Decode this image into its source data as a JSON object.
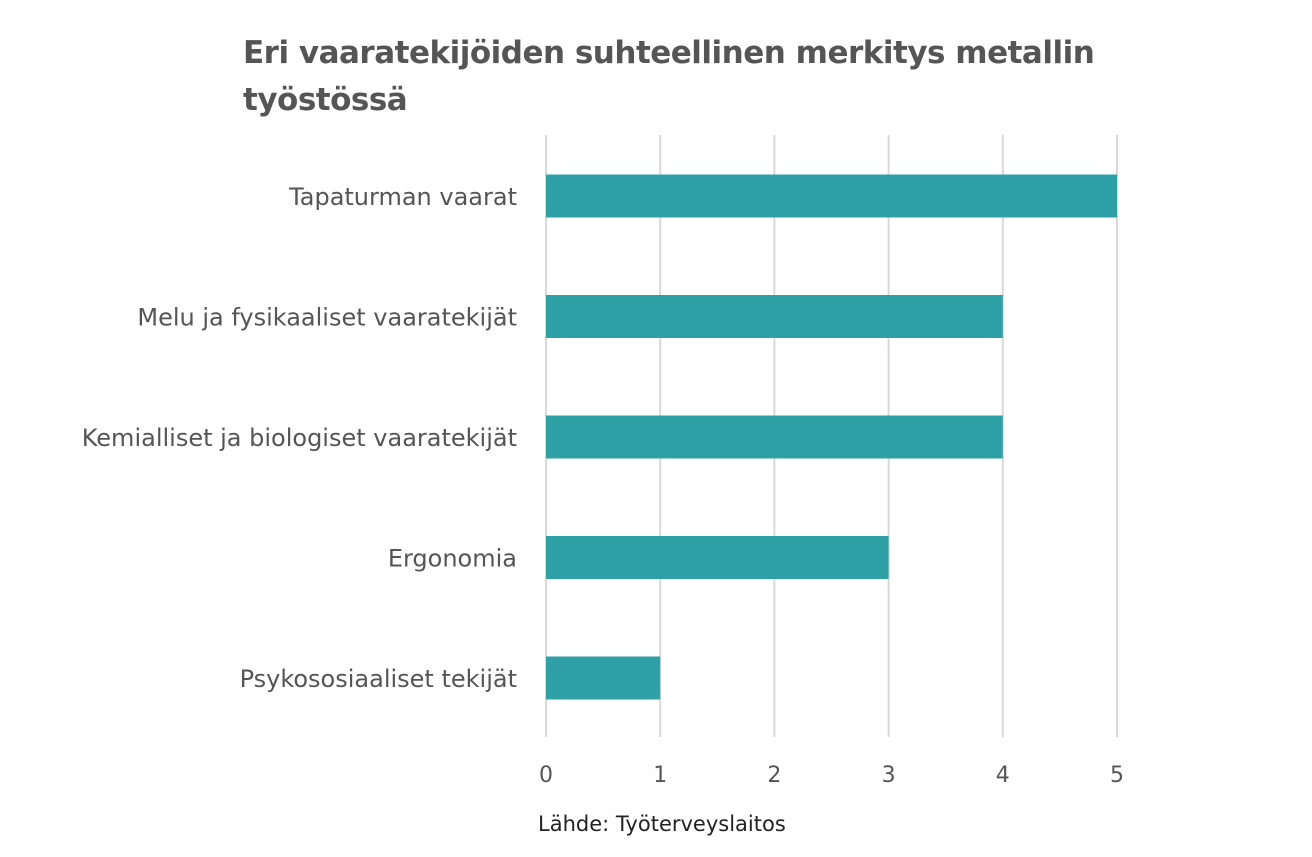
{
  "chart_data": {
    "type": "bar",
    "orientation": "horizontal",
    "title": "Eri vaaratekijöiden suhteellinen merkitys metallin työstössä",
    "categories": [
      "Tapaturman vaarat",
      "Melu ja fysikaaliset vaaratekijät",
      "Kemialliset ja biologiset vaaratekijät",
      "Ergonomia",
      "Psykososiaaliset tekijät"
    ],
    "values": [
      5,
      4,
      4,
      3,
      1
    ],
    "xlim": [
      0,
      5
    ],
    "xticks": [
      "0",
      "1",
      "2",
      "3",
      "4",
      "5"
    ],
    "xlabel": "",
    "ylabel": "",
    "grid": "vertical",
    "legend": "none",
    "bar_color": "#2ea0a6",
    "grid_color": "#d9d9d9"
  },
  "source_note": "Lähde: Työterveyslaitos"
}
